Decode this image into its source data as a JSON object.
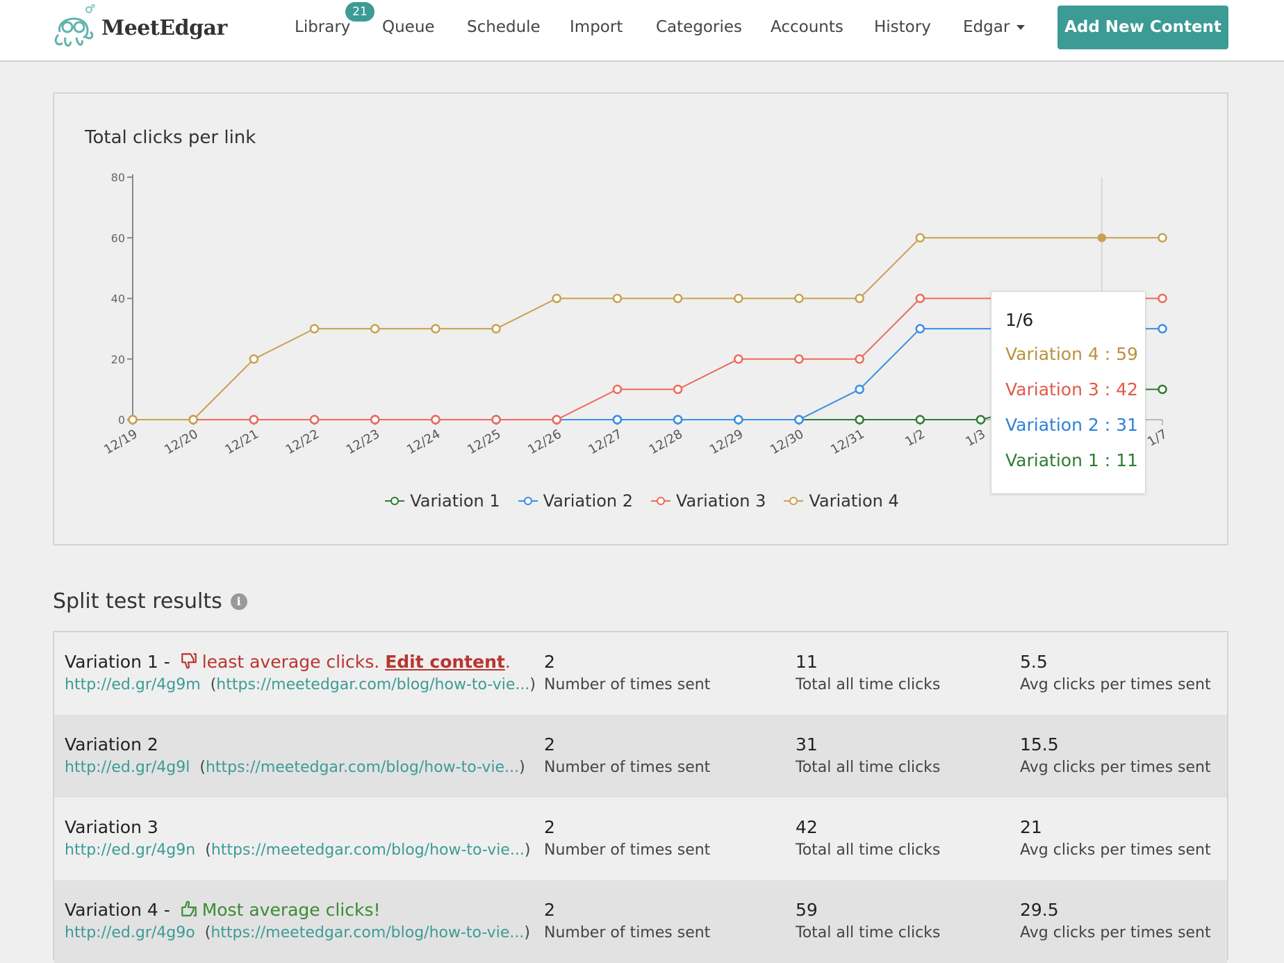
{
  "header": {
    "logo_text": "MeetEdgar",
    "nav": [
      {
        "label": "Library",
        "badge": "21"
      },
      {
        "label": "Queue"
      },
      {
        "label": "Schedule"
      },
      {
        "label": "Import"
      },
      {
        "label": "Categories"
      },
      {
        "label": "Accounts"
      },
      {
        "label": "History"
      },
      {
        "label": "Edgar"
      }
    ],
    "add_button": "Add New Content",
    "accent_color": "#3c9b95"
  },
  "chart_data": {
    "type": "line",
    "title": "Total clicks per link",
    "categories": [
      "12/19",
      "12/20",
      "12/21",
      "12/22",
      "12/23",
      "12/24",
      "12/25",
      "12/26",
      "12/27",
      "12/28",
      "12/29",
      "12/30",
      "12/31",
      "1/2",
      "1/3",
      "1/5",
      "1/6",
      "1/7"
    ],
    "ylim": [
      0,
      80
    ],
    "yticks": [
      0,
      20,
      40,
      60,
      80
    ],
    "legend_position": "bottom",
    "series": [
      {
        "name": "Variation 1",
        "color": "#2e7d32",
        "values": [
          0,
          0,
          0,
          0,
          0,
          0,
          0,
          0,
          0,
          0,
          0,
          0,
          0,
          0,
          0,
          null,
          10,
          10
        ]
      },
      {
        "name": "Variation 2",
        "color": "#3a8ee6",
        "values": [
          0,
          0,
          0,
          0,
          0,
          0,
          0,
          0,
          0,
          0,
          0,
          0,
          10,
          30,
          null,
          null,
          30,
          30
        ]
      },
      {
        "name": "Variation 3",
        "color": "#ef6a5a",
        "values": [
          0,
          0,
          0,
          0,
          0,
          0,
          0,
          0,
          10,
          10,
          20,
          20,
          20,
          40,
          null,
          null,
          40,
          40
        ]
      },
      {
        "name": "Variation 4",
        "color": "#c9a14f",
        "values": [
          0,
          0,
          20,
          30,
          30,
          30,
          30,
          40,
          40,
          40,
          40,
          40,
          40,
          60,
          null,
          null,
          60,
          60
        ]
      }
    ],
    "tooltip": {
      "title": "1/6",
      "rows": [
        {
          "label": "Variation 4 : 59",
          "color": "#b9923d"
        },
        {
          "label": "Variation 3 : 42",
          "color": "#e05a48"
        },
        {
          "label": "Variation 2 : 31",
          "color": "#2f80d8"
        },
        {
          "label": "Variation 1 : 11",
          "color": "#2e7d32"
        }
      ]
    }
  },
  "results": {
    "title": "Split test results",
    "info_icon": "i",
    "rows": [
      {
        "name": "Variation 1 - ",
        "note_type": "least",
        "note": "least average clicks. ",
        "edit_link": "Edit content",
        "edit_suffix": ".",
        "short_url": "http://ed.gr/4g9m",
        "open_paren": "(",
        "long_url": "https://meetedgar.com/blog/how-to-vie...",
        "close_paren": ")",
        "times_sent": "2",
        "times_sent_label": "Number of times sent",
        "total_clicks": "11",
        "total_clicks_label": "Total all time clicks",
        "avg_clicks": "5.5",
        "avg_clicks_label": "Avg clicks per times sent"
      },
      {
        "name": "Variation 2",
        "note_type": "",
        "note": "",
        "short_url": "http://ed.gr/4g9l",
        "open_paren": "(",
        "long_url": "https://meetedgar.com/blog/how-to-vie...",
        "close_paren": ")",
        "times_sent": "2",
        "times_sent_label": "Number of times sent",
        "total_clicks": "31",
        "total_clicks_label": "Total all time clicks",
        "avg_clicks": "15.5",
        "avg_clicks_label": "Avg clicks per times sent"
      },
      {
        "name": "Variation 3",
        "note_type": "",
        "note": "",
        "short_url": "http://ed.gr/4g9n",
        "open_paren": "(",
        "long_url": "https://meetedgar.com/blog/how-to-vie...",
        "close_paren": ")",
        "times_sent": "2",
        "times_sent_label": "Number of times sent",
        "total_clicks": "42",
        "total_clicks_label": "Total all time clicks",
        "avg_clicks": "21",
        "avg_clicks_label": "Avg clicks per times sent"
      },
      {
        "name": "Variation 4 - ",
        "note_type": "most",
        "note": "Most average clicks!",
        "short_url": "http://ed.gr/4g9o",
        "open_paren": "(",
        "long_url": "https://meetedgar.com/blog/how-to-vie...",
        "close_paren": ")",
        "times_sent": "2",
        "times_sent_label": "Number of times sent",
        "total_clicks": "59",
        "total_clicks_label": "Total all time clicks",
        "avg_clicks": "29.5",
        "avg_clicks_label": "Avg clicks per times sent"
      }
    ]
  }
}
